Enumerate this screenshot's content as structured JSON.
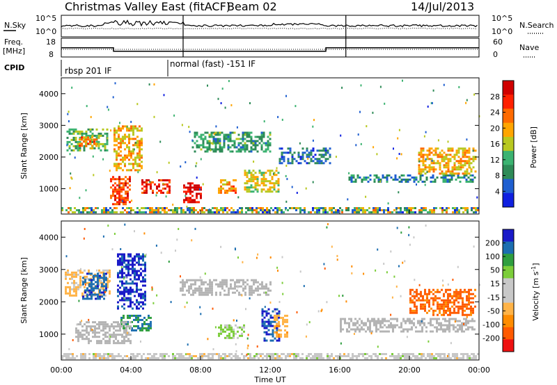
{
  "header": {
    "title": "Christmas Valley East (fitACF)",
    "beam": "Beam 02",
    "date": "14/Jul/2013"
  },
  "strip": {
    "nsky_label": "N.Sky",
    "nsearch_label": "N.Search",
    "noise_ticks_left": [
      "10^5",
      "10^0"
    ],
    "noise_ticks_right": [
      "10^5",
      "10^0"
    ],
    "freq_label": "Freq.",
    "freq_unit": "[MHz]",
    "freq_ticks": [
      "18",
      "8"
    ],
    "nave_label": "Nave",
    "nave_ticks": [
      "60",
      "0"
    ],
    "cpid_label": "CPID",
    "cpid_modes": [
      "rbsp 201 IF",
      "normal (fast) -151 IF"
    ]
  },
  "colors": {
    "power_scale": [
      "#1020e0",
      "#1f5fd0",
      "#2e8b57",
      "#3cb371",
      "#b8c820",
      "#ffa500",
      "#ff6a00",
      "#ff2000",
      "#d00000"
    ],
    "velocity_scale": [
      "#ee1111",
      "#ff5a00",
      "#ff8c00",
      "#ffb347",
      "#c8c8c8",
      "#c8c8c8",
      "#7ccd3a",
      "#2f9e3f",
      "#1c6eb0",
      "#1a1ac8"
    ],
    "ground_scatter": "#b4b4b4"
  },
  "chart_data": [
    {
      "type": "heatmap",
      "name": "Power panel",
      "ylabel": "Slant Range [km]",
      "y_ticks": [
        "1000",
        "2000",
        "3000",
        "4000"
      ],
      "ylim": [
        200,
        4500
      ],
      "xlim": [
        "00:00",
        "24:00"
      ],
      "x_ticks": [
        "00:00",
        "04:00",
        "08:00",
        "12:00",
        "16:00",
        "20:00",
        "00:00"
      ],
      "colorbar": {
        "label": "Power [dB]",
        "ticks": [
          "4",
          "8",
          "12",
          "16",
          "20",
          "24",
          "28"
        ],
        "range": [
          0,
          30
        ]
      },
      "regions": [
        {
          "t": [
            0.3,
            2.6
          ],
          "r": [
            2200,
            2900
          ],
          "v": 12
        },
        {
          "t": [
            1.0,
            2.0
          ],
          "r": [
            2350,
            2650
          ],
          "v": 20
        },
        {
          "t": [
            2.8,
            4.0
          ],
          "r": [
            500,
            1400
          ],
          "v": 24
        },
        {
          "t": [
            3.0,
            4.6
          ],
          "r": [
            1600,
            3000
          ],
          "v": 18
        },
        {
          "t": [
            4.6,
            6.2
          ],
          "r": [
            900,
            1300
          ],
          "v": 26
        },
        {
          "t": [
            7.0,
            8.0
          ],
          "r": [
            600,
            1200
          ],
          "v": 28
        },
        {
          "t": [
            7.5,
            12.0
          ],
          "r": [
            2200,
            2800
          ],
          "v": 10
        },
        {
          "t": [
            9.0,
            10.0
          ],
          "r": [
            900,
            1300
          ],
          "v": 20
        },
        {
          "t": [
            10.5,
            12.5
          ],
          "r": [
            900,
            1600
          ],
          "v": 16
        },
        {
          "t": [
            12.5,
            15.5
          ],
          "r": [
            1800,
            2300
          ],
          "v": 6
        },
        {
          "t": [
            16.5,
            23.8
          ],
          "r": [
            1250,
            1450
          ],
          "v": 8
        },
        {
          "t": [
            20.5,
            23.8
          ],
          "r": [
            1500,
            2300
          ],
          "v": 18
        }
      ]
    },
    {
      "type": "heatmap",
      "name": "Velocity panel",
      "ylabel": "Slant Range [km]",
      "y_ticks": [
        "1000",
        "2000",
        "3000",
        "4000"
      ],
      "ylim": [
        200,
        4500
      ],
      "xlim": [
        "00:00",
        "24:00"
      ],
      "x_ticks": [
        "00:00",
        "04:00",
        "08:00",
        "12:00",
        "16:00",
        "20:00",
        "00:00"
      ],
      "xlabel": "Time UT",
      "colorbar": {
        "label": "Velocity [m s^-1]",
        "ticks": [
          "200",
          "100",
          "50",
          "15",
          "-15",
          "-50",
          "-100",
          "-200"
        ],
        "range": [
          -250,
          250
        ]
      },
      "regions": [
        {
          "t": [
            0.2,
            2.8
          ],
          "r": [
            2200,
            3000
          ],
          "v": -60
        },
        {
          "t": [
            1.2,
            2.6
          ],
          "r": [
            2100,
            2900
          ],
          "v": 180
        },
        {
          "t": [
            3.2,
            4.8
          ],
          "r": [
            1800,
            3500
          ],
          "v": 210
        },
        {
          "t": [
            3.4,
            5.2
          ],
          "r": [
            1100,
            1600
          ],
          "v": 150
        },
        {
          "t": [
            0.8,
            4.0
          ],
          "r": [
            700,
            1400
          ],
          "v": 0,
          "ground": true
        },
        {
          "t": [
            6.8,
            12.0
          ],
          "r": [
            2200,
            2700
          ],
          "v": 0,
          "ground": true
        },
        {
          "t": [
            9.0,
            10.5
          ],
          "r": [
            900,
            1300
          ],
          "v": 60
        },
        {
          "t": [
            11.5,
            12.5
          ],
          "r": [
            800,
            1800
          ],
          "v": 200
        },
        {
          "t": [
            12.2,
            13.0
          ],
          "r": [
            900,
            1600
          ],
          "v": -80
        },
        {
          "t": [
            16.0,
            23.8
          ],
          "r": [
            1100,
            1500
          ],
          "v": 0,
          "ground": true
        },
        {
          "t": [
            20.0,
            23.8
          ],
          "r": [
            1600,
            2400
          ],
          "v": -170
        }
      ]
    }
  ],
  "axis": {
    "xlabel": "Time UT",
    "ylabel_power": "Slant Range [km]",
    "ylabel_velocity": "Slant Range [km]"
  }
}
